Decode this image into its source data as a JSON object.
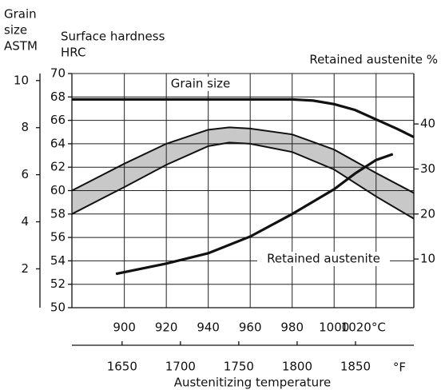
{
  "chart_data": {
    "type": "line",
    "grain_axis_title": [
      "Grain",
      "size",
      "ASTM"
    ],
    "hrc_axis_title": [
      "Surface hardness",
      "HRC"
    ],
    "y2_title": "Retained austenite %",
    "x_title": "Austenitizing temperature",
    "fahrenheit_unit": "°F",
    "xlim": [
      875,
      1038
    ],
    "xticks": [
      900,
      920,
      940,
      960,
      980,
      1000,
      {
        "value": 1020,
        "label": "1020°C"
      }
    ],
    "xflim": [
      1607,
      1900
    ],
    "xfticks": [
      1650,
      1700,
      1750,
      1800,
      1850
    ],
    "ylim": [
      50,
      70
    ],
    "yticks": [
      50,
      52,
      54,
      56,
      58,
      60,
      62,
      64,
      66,
      68,
      70
    ],
    "grainlim": [
      0.35,
      10.3
    ],
    "grainticks": [
      2,
      4,
      6,
      8,
      10
    ],
    "y2lim": [
      -0.8,
      51.2
    ],
    "y2ticks": [
      10,
      20,
      30,
      40
    ],
    "grid": true,
    "series": [
      {
        "name": "Grain size",
        "axis": "grain",
        "color": "#111",
        "x": [
          875,
          900,
          920,
          940,
          960,
          980,
          990,
          1000,
          1010,
          1020,
          1030,
          1038
        ],
        "values": [
          9.2,
          9.2,
          9.2,
          9.2,
          9.2,
          9.2,
          9.15,
          9.0,
          8.75,
          8.35,
          7.95,
          7.6
        ]
      },
      {
        "name": "Retained austenite",
        "axis": "y2",
        "color": "#111",
        "x": [
          896,
          920,
          940,
          960,
          980,
          1000,
          1010,
          1020,
          1028
        ],
        "values": [
          6.7,
          9,
          11.3,
          15,
          20,
          25.5,
          29,
          32,
          33.3
        ]
      }
    ],
    "hardness_band": {
      "color": "#c8c8c8",
      "x": [
        875,
        900,
        920,
        940,
        950,
        960,
        980,
        1000,
        1020,
        1038
      ],
      "upper": [
        60,
        62.3,
        64,
        65.2,
        65.4,
        65.3,
        64.8,
        63.5,
        61.5,
        59.8
      ],
      "lower": [
        58,
        60.3,
        62.2,
        63.8,
        64.1,
        64.0,
        63.3,
        61.8,
        59.5,
        57.6
      ]
    }
  }
}
